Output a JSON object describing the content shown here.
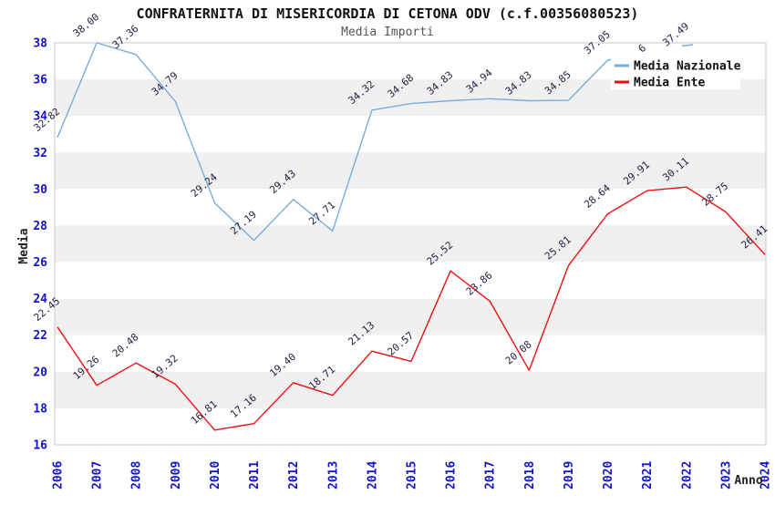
{
  "header": {
    "title": "CONFRATERNITA DI MISERICORDIA DI CETONA ODV (c.f.00356080523)",
    "subtitle": "Media Importi"
  },
  "chart_data": {
    "type": "line",
    "title": "CONFRATERNITA DI MISERICORDIA DI CETONA ODV (c.f.00356080523)",
    "subtitle": "Media Importi",
    "xlabel": "Anno",
    "ylabel": "Media",
    "x": [
      2006,
      2007,
      2008,
      2009,
      2010,
      2011,
      2012,
      2013,
      2014,
      2015,
      2016,
      2017,
      2018,
      2019,
      2020,
      2021,
      2022,
      2023,
      2024
    ],
    "series": [
      {
        "name": "Media Nazionale",
        "color": "#79acdf",
        "values": [
          32.82,
          38.0,
          37.36,
          34.79,
          29.24,
          27.19,
          29.43,
          27.71,
          34.32,
          34.68,
          34.83,
          34.94,
          34.83,
          34.85,
          37.05,
          37.46,
          37.49,
          null,
          null
        ],
        "labels": [
          "32.82",
          "38.00",
          "37.36",
          "34.79",
          "29.24",
          "27.19",
          "29.43",
          "27.71",
          "34.32",
          "34.68",
          "34.83",
          "34.94",
          "34.83",
          "34.85",
          "37.05",
          "",
          "37.49",
          "",
          ""
        ]
      },
      {
        "name": "Media Ente",
        "color": "#ee1111",
        "values": [
          22.45,
          19.26,
          20.48,
          19.32,
          16.81,
          17.16,
          19.4,
          18.71,
          21.13,
          20.57,
          25.52,
          23.86,
          20.08,
          25.81,
          28.64,
          29.91,
          30.11,
          28.75,
          26.41
        ],
        "labels": [
          "22.45",
          "19.26",
          "20.48",
          "19.32",
          "16.81",
          "17.16",
          "19.40",
          "18.71",
          "21.13",
          "20.57",
          "25.52",
          "23.86",
          "20.08",
          "25.81",
          "28.64",
          "29.91",
          "30.11",
          "28.75",
          "26.41"
        ]
      }
    ],
    "overlay": {
      "partial_label": "6"
    },
    "ylim": [
      16,
      38
    ],
    "ytick_step": 2,
    "yticks": [
      16,
      18,
      20,
      22,
      24,
      26,
      28,
      30,
      32,
      34,
      36,
      38
    ],
    "grid": "alternating-bands",
    "band_colors": [
      "#ffffff",
      "#f0f0f0"
    ],
    "border_color": "#c9c9c9",
    "tick_label_color": "#1414cc",
    "point_label_color": "#222244",
    "legend_position": "top-right",
    "legend_background": "#ffffff"
  }
}
